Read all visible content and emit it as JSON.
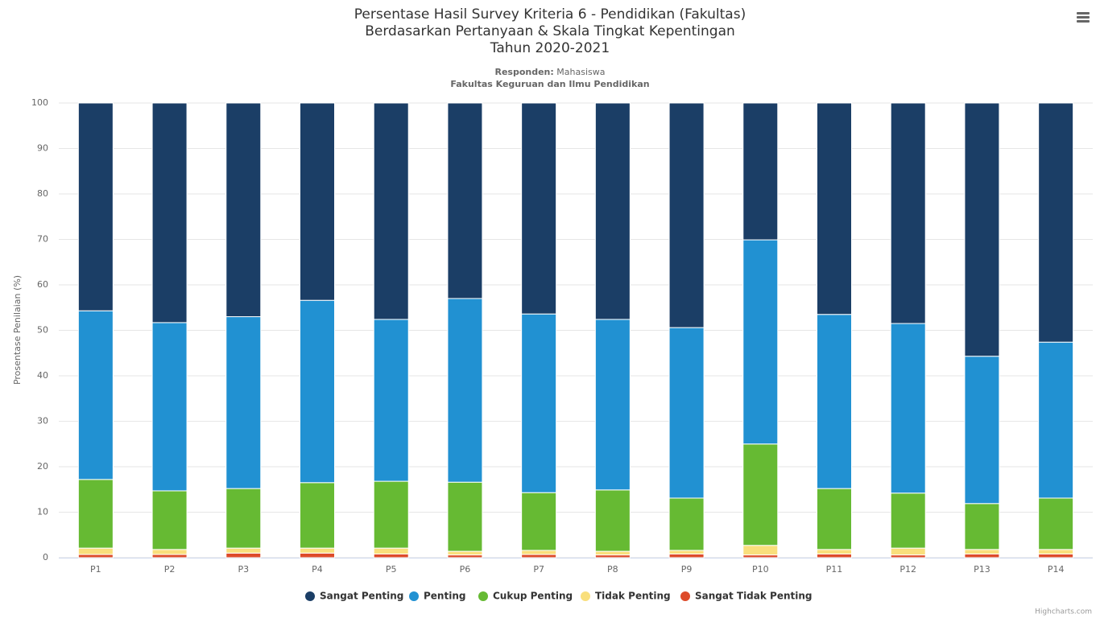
{
  "chart_data": {
    "type": "stacked_bar",
    "title": [
      "Persentase Hasil Survey Kriteria 6 - Pendidikan (Fakultas)",
      "Berdasarkan Pertanyaan & Skala Tingkat Kepentingan",
      "Tahun 2020-2021"
    ],
    "subtitle_label": "Responden:",
    "subtitle_value": "Mahasiswa",
    "subtitle2": "Fakultas Keguruan dan Ilmu Pendidikan",
    "y_label": "Prosentase Penilaian (%)",
    "categories": [
      "P1",
      "P2",
      "P3",
      "P4",
      "P5",
      "P6",
      "P7",
      "P8",
      "P9",
      "P10",
      "P11",
      "P12",
      "P13",
      "P14"
    ],
    "series": [
      {
        "name": "Sangat Penting",
        "color": "#1b3e66",
        "values": [
          45.7,
          48.3,
          47.0,
          43.4,
          47.6,
          43.0,
          46.4,
          47.6,
          49.4,
          30.1,
          46.5,
          48.5,
          55.7,
          52.6
        ]
      },
      {
        "name": "Penting",
        "color": "#2191d2",
        "values": [
          37.1,
          37.0,
          37.8,
          40.1,
          35.6,
          40.4,
          39.3,
          37.5,
          37.5,
          44.9,
          38.3,
          37.3,
          32.4,
          34.3
        ]
      },
      {
        "name": "Cukup Penting",
        "color": "#66ba33",
        "values": [
          15.1,
          12.9,
          13.1,
          14.4,
          14.7,
          15.2,
          12.7,
          13.5,
          11.5,
          22.3,
          13.4,
          12.1,
          10.1,
          11.3
        ]
      },
      {
        "name": "Tidak Penting",
        "color": "#f9df7c",
        "values": [
          1.4,
          1.1,
          1.1,
          1.1,
          1.3,
          0.8,
          0.9,
          0.8,
          0.8,
          2.1,
          1.0,
          1.5,
          1.0,
          1.0
        ]
      },
      {
        "name": "Sangat Tidak Penting",
        "color": "#dd4b2a",
        "values": [
          0.7,
          0.7,
          1.0,
          1.0,
          0.8,
          0.6,
          0.7,
          0.6,
          0.8,
          0.6,
          0.8,
          0.6,
          0.8,
          0.8
        ]
      }
    ],
    "ylim": [
      0,
      100
    ],
    "yticks": [
      0,
      10,
      20,
      30,
      40,
      50,
      60,
      70,
      80,
      90,
      100
    ],
    "grid": true,
    "credits": "Highcharts.com"
  }
}
